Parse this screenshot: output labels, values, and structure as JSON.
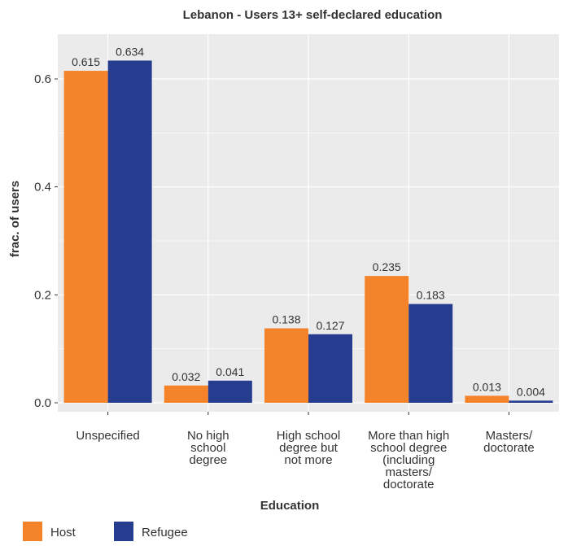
{
  "chart_data": {
    "type": "bar",
    "title": "Lebanon - Users 13+ self-declared education",
    "xlabel": "Education",
    "ylabel": "frac. of users",
    "categories": [
      [
        "Unspecified"
      ],
      [
        "No high",
        "school",
        "degree"
      ],
      [
        "High school",
        "degree but",
        "not more"
      ],
      [
        "More than high",
        "school degree",
        "(including",
        "masters/",
        "doctorate"
      ],
      [
        "Masters/",
        "doctorate"
      ]
    ],
    "series": [
      {
        "name": "Host",
        "color": "#F5832A",
        "values": [
          0.615,
          0.032,
          0.138,
          0.235,
          0.013
        ]
      },
      {
        "name": "Refugee",
        "color": "#253C8F",
        "values": [
          0.634,
          0.041,
          0.127,
          0.183,
          0.004
        ]
      }
    ],
    "ylim": [
      0,
      0.6
    ],
    "yticks": [
      "0.0",
      "0.2",
      "0.4",
      "0.6"
    ],
    "legend": "bottom-left",
    "grid": true,
    "panel_background": "#EBEBEB",
    "grid_color": "#FFFFFF"
  }
}
